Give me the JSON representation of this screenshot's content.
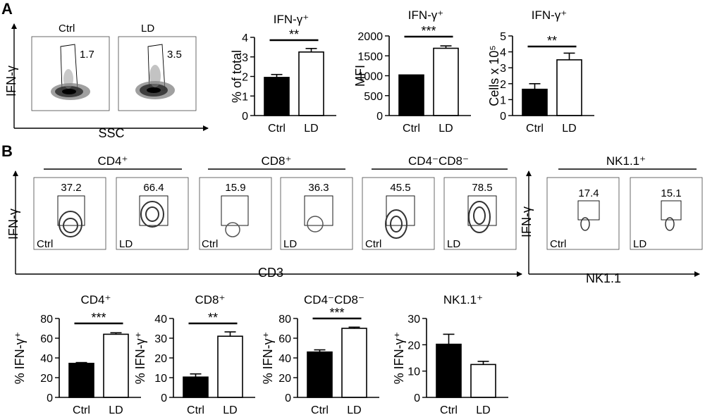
{
  "panels": {
    "a": "A",
    "b": "B"
  },
  "a_flow": {
    "y_label": "IFN-γ",
    "x_label": "SSC",
    "plots": [
      {
        "label": "Ctrl",
        "gate": "1.7"
      },
      {
        "label": "LD",
        "gate": "3.5"
      }
    ]
  },
  "b_flow": {
    "y_label": "IFN-γ",
    "x_label_left": "CD3",
    "x_label_right": "NK1.1",
    "y_label_right": "IFN-γ",
    "groups": [
      {
        "label": "CD4⁺",
        "plots": [
          {
            "label": "Ctrl",
            "gate": "37.2"
          },
          {
            "label": "LD",
            "gate": "66.4"
          }
        ]
      },
      {
        "label": "CD8⁺",
        "plots": [
          {
            "label": "Ctrl",
            "gate": "15.9"
          },
          {
            "label": "LD",
            "gate": "36.3"
          }
        ]
      },
      {
        "label": "CD4⁻CD8⁻",
        "plots": [
          {
            "label": "Ctrl",
            "gate": "45.5"
          },
          {
            "label": "LD",
            "gate": "78.5"
          }
        ]
      },
      {
        "label": "NK1.1⁺",
        "plots": [
          {
            "label": "Ctrl",
            "gate": "17.4"
          },
          {
            "label": "LD",
            "gate": "15.1"
          }
        ]
      }
    ]
  },
  "chart_data": [
    {
      "type": "bar",
      "title": "IFN-γ⁺",
      "ylabel": "% of total",
      "xlabel": "",
      "categories": [
        "Ctrl",
        "LD"
      ],
      "values": [
        1.95,
        3.25
      ],
      "errors": [
        0.15,
        0.18
      ],
      "ylim": [
        0,
        4
      ],
      "yticks": [
        0,
        1,
        2,
        3,
        4
      ],
      "significance": "**",
      "fills": [
        "#000000",
        "#ffffff"
      ]
    },
    {
      "type": "bar",
      "title": "IFN-γ⁺",
      "ylabel": "MFI",
      "xlabel": "",
      "categories": [
        "Ctrl",
        "LD"
      ],
      "values": [
        1020,
        1690
      ],
      "errors": [
        0,
        60
      ],
      "ylim": [
        0,
        2000
      ],
      "yticks": [
        0,
        500,
        1000,
        1500,
        2000
      ],
      "significance": "***",
      "fills": [
        "#000000",
        "#ffffff"
      ]
    },
    {
      "type": "bar",
      "title": "IFN-γ⁺",
      "ylabel": "Cells x 10⁵",
      "xlabel": "",
      "categories": [
        "Ctrl",
        "LD"
      ],
      "values": [
        1.65,
        3.5
      ],
      "errors": [
        0.35,
        0.42
      ],
      "ylim": [
        0,
        5
      ],
      "yticks": [
        0,
        1,
        2,
        3,
        4,
        5
      ],
      "significance": "**",
      "fills": [
        "#000000",
        "#ffffff"
      ]
    },
    {
      "type": "bar",
      "title": "CD4⁺",
      "ylabel": "% IFN-γ⁺",
      "xlabel": "",
      "categories": [
        "Ctrl",
        "LD"
      ],
      "values": [
        34.5,
        64
      ],
      "errors": [
        0.8,
        1.5
      ],
      "ylim": [
        0,
        80
      ],
      "yticks": [
        0,
        20,
        40,
        60,
        80
      ],
      "significance": "***",
      "fills": [
        "#000000",
        "#ffffff"
      ]
    },
    {
      "type": "bar",
      "title": "CD8⁺",
      "ylabel": "% IFN-γ⁺",
      "xlabel": "",
      "categories": [
        "Ctrl",
        "LD"
      ],
      "values": [
        10.3,
        31
      ],
      "errors": [
        1.6,
        2.2
      ],
      "ylim": [
        0,
        40
      ],
      "yticks": [
        0,
        10,
        20,
        30,
        40
      ],
      "significance": "**",
      "fills": [
        "#000000",
        "#ffffff"
      ]
    },
    {
      "type": "bar",
      "title": "CD4⁻CD8⁻",
      "ylabel": "% IFN-γ⁺",
      "xlabel": "",
      "categories": [
        "Ctrl",
        "LD"
      ],
      "values": [
        46,
        70
      ],
      "errors": [
        2.2,
        1.2
      ],
      "ylim": [
        0,
        80
      ],
      "yticks": [
        0,
        20,
        40,
        60,
        80
      ],
      "significance": "***",
      "fills": [
        "#000000",
        "#ffffff"
      ]
    },
    {
      "type": "bar",
      "title": "NK1.1⁺",
      "ylabel": "% IFN-γ⁺",
      "xlabel": "",
      "categories": [
        "Ctrl",
        "LD"
      ],
      "values": [
        20.2,
        12.5
      ],
      "errors": [
        3.8,
        1.2
      ],
      "ylim": [
        0,
        30
      ],
      "yticks": [
        0,
        10,
        20,
        30
      ],
      "significance": "",
      "fills": [
        "#000000",
        "#ffffff"
      ]
    }
  ]
}
